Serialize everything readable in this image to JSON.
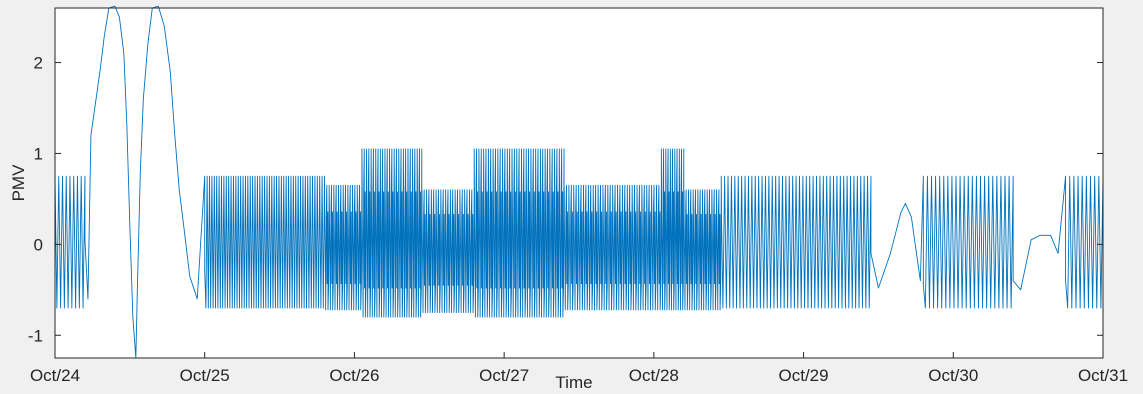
{
  "chart_data": {
    "type": "line",
    "title": "",
    "xlabel": "Time",
    "ylabel": "PMV",
    "ylim": [
      -1.25,
      2.6
    ],
    "xlim": [
      0,
      7
    ],
    "grid": false,
    "line_color": "#0072BD",
    "background_color": "#f0f0f0",
    "plot_background_color": "#ffffff",
    "x_ticks": [
      {
        "label": "Oct/24",
        "value": 0
      },
      {
        "label": "Oct/25",
        "value": 1
      },
      {
        "label": "Oct/26",
        "value": 2
      },
      {
        "label": "Oct/27",
        "value": 3
      },
      {
        "label": "Oct/28",
        "value": 4
      },
      {
        "label": "Oct/29",
        "value": 5
      },
      {
        "label": "Oct/30",
        "value": 6
      },
      {
        "label": "Oct/31",
        "value": 7
      }
    ],
    "y_ticks": [
      {
        "label": "-1",
        "value": -1
      },
      {
        "label": "0",
        "value": 0
      },
      {
        "label": "1",
        "value": 1
      },
      {
        "label": "2",
        "value": 2
      }
    ],
    "series": [
      {
        "segments": [
          {
            "start": 0.0,
            "end": 0.2,
            "cycles": 8,
            "min": -0.7,
            "max": 0.75,
            "dense": false
          },
          {
            "start": 1.0,
            "end": 1.8,
            "cycles": 50,
            "min": -0.7,
            "max": 0.75,
            "dense": false
          },
          {
            "start": 1.8,
            "end": 2.05,
            "cycles": 16,
            "min": -0.72,
            "max": 0.65,
            "dense": true
          },
          {
            "start": 2.05,
            "end": 2.45,
            "cycles": 26,
            "min": -0.8,
            "max": 1.05,
            "dense": true
          },
          {
            "start": 2.45,
            "end": 2.8,
            "cycles": 22,
            "min": -0.75,
            "max": 0.6,
            "dense": true
          },
          {
            "start": 2.8,
            "end": 3.4,
            "cycles": 38,
            "min": -0.8,
            "max": 1.05,
            "dense": true
          },
          {
            "start": 3.4,
            "end": 4.05,
            "cycles": 40,
            "min": -0.72,
            "max": 0.65,
            "dense": true
          },
          {
            "start": 4.05,
            "end": 4.2,
            "cycles": 10,
            "min": -0.72,
            "max": 1.05,
            "dense": true
          },
          {
            "start": 4.2,
            "end": 4.45,
            "cycles": 16,
            "min": -0.72,
            "max": 0.6,
            "dense": true
          },
          {
            "start": 4.45,
            "end": 5.45,
            "cycles": 44,
            "min": -0.7,
            "max": 0.75,
            "dense": false
          },
          {
            "start": 5.8,
            "end": 6.4,
            "cycles": 22,
            "min": -0.7,
            "max": 0.75,
            "dense": false
          },
          {
            "start": 6.75,
            "end": 7.0,
            "cycles": 9,
            "min": -0.7,
            "max": 0.75,
            "dense": false
          }
        ],
        "keypoints": [
          [
            0.2,
            0.05
          ],
          [
            0.22,
            -0.6
          ],
          [
            0.24,
            1.2
          ],
          [
            0.27,
            1.55
          ],
          [
            0.3,
            1.9
          ],
          [
            0.33,
            2.3
          ],
          [
            0.36,
            2.6
          ],
          [
            0.4,
            2.62
          ],
          [
            0.43,
            2.5
          ],
          [
            0.46,
            2.1
          ],
          [
            0.48,
            1.3
          ],
          [
            0.5,
            0.2
          ],
          [
            0.52,
            -0.8
          ],
          [
            0.54,
            -1.25
          ],
          [
            0.55,
            -0.5
          ],
          [
            0.57,
            0.8
          ],
          [
            0.59,
            1.6
          ],
          [
            0.62,
            2.2
          ],
          [
            0.65,
            2.6
          ],
          [
            0.69,
            2.62
          ],
          [
            0.73,
            2.4
          ],
          [
            0.77,
            1.9
          ],
          [
            0.8,
            1.2
          ],
          [
            0.83,
            0.6
          ],
          [
            0.86,
            0.2
          ],
          [
            0.9,
            -0.35
          ],
          [
            0.95,
            -0.6
          ],
          [
            1.0,
            -0.3
          ],
          [
            5.45,
            -0.1
          ],
          [
            5.5,
            -0.48
          ],
          [
            5.58,
            -0.1
          ],
          [
            5.65,
            0.35
          ],
          [
            5.68,
            0.45
          ],
          [
            5.72,
            0.3
          ],
          [
            5.78,
            -0.4
          ],
          [
            5.8,
            -0.45
          ],
          [
            6.4,
            -0.4
          ],
          [
            6.45,
            -0.5
          ],
          [
            6.52,
            0.05
          ],
          [
            6.58,
            0.1
          ],
          [
            6.65,
            0.1
          ],
          [
            6.7,
            -0.1
          ],
          [
            6.75,
            -0.4
          ]
        ]
      }
    ]
  }
}
